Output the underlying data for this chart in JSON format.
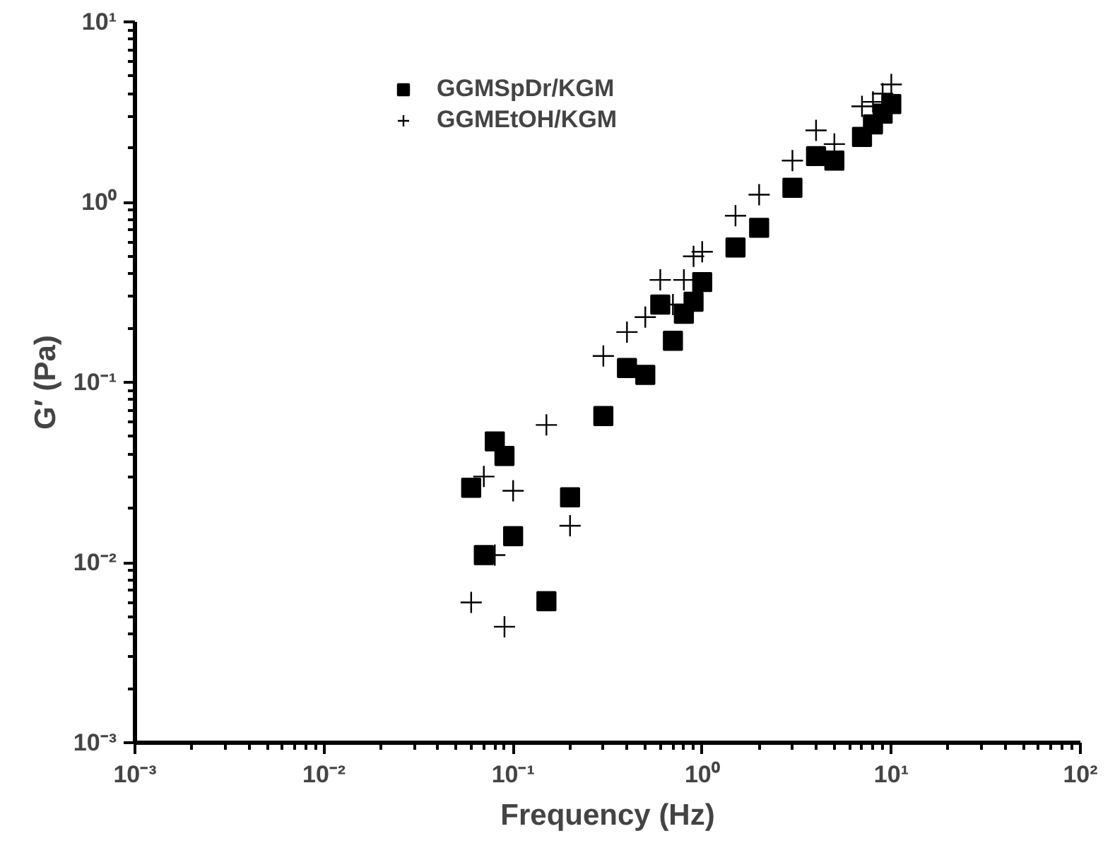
{
  "chart_data": {
    "type": "scatter",
    "xlabel": "Frequency (Hz)",
    "ylabel": "G′ (Pa)",
    "log": "xy",
    "grid": false,
    "legend": "top",
    "xlim": [
      0.001,
      100
    ],
    "ylim": [
      0.001,
      10
    ],
    "xticks": [
      {
        "value": 0.001,
        "label": "10⁻³"
      },
      {
        "value": 0.01,
        "label": "10⁻²"
      },
      {
        "value": 0.1,
        "label": "10⁻¹"
      },
      {
        "value": 1,
        "label": "10⁰"
      },
      {
        "value": 10,
        "label": "10¹"
      },
      {
        "value": 100,
        "label": "10²"
      }
    ],
    "yticks": [
      {
        "value": 0.001,
        "label": "10⁻³"
      },
      {
        "value": 0.01,
        "label": "10⁻²"
      },
      {
        "value": 0.1,
        "label": "10⁻¹"
      },
      {
        "value": 1,
        "label": "10⁰"
      },
      {
        "value": 10,
        "label": "10¹"
      }
    ],
    "x": [
      0.06,
      0.07,
      0.08,
      0.09,
      0.1,
      0.15,
      0.2,
      0.3,
      0.4,
      0.5,
      0.6,
      0.7,
      0.8,
      0.9,
      1,
      1.5,
      2,
      3,
      4,
      5,
      7,
      8,
      9,
      10
    ],
    "series": [
      {
        "name": "GGMSpDr/KGM",
        "color": "#000000",
        "marker": "square",
        "values": [
          0.026,
          0.011,
          0.047,
          0.039,
          0.014,
          0.0061,
          0.023,
          0.065,
          0.12,
          0.11,
          0.27,
          0.17,
          0.24,
          0.28,
          0.36,
          0.56,
          0.72,
          1.2,
          1.8,
          1.7,
          2.3,
          2.7,
          3.1,
          3.5
        ]
      },
      {
        "name": "GGMEtOH/KGM",
        "color": "#000000",
        "marker": "cross",
        "values": [
          0.006,
          0.03,
          0.011,
          0.0044,
          0.025,
          0.058,
          0.016,
          0.14,
          0.19,
          0.23,
          0.37,
          0.27,
          0.37,
          0.5,
          0.53,
          0.84,
          1.1,
          1.7,
          2.5,
          2.1,
          3.4,
          3.6,
          4.0,
          4.5
        ]
      }
    ]
  }
}
